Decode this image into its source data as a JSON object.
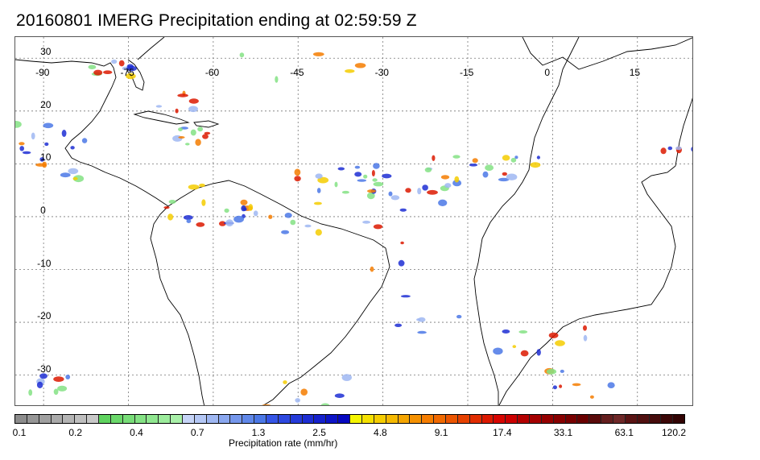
{
  "title": "20160801 IMERG Precipitation ending at 02:59:59 Z",
  "map": {
    "lon_labels": [
      "-90",
      "-75",
      "-60",
      "-45",
      "-30",
      "-15",
      "0",
      "15"
    ],
    "lat_labels": [
      "30",
      "20",
      "10",
      "0",
      "-10",
      "-20",
      "-30"
    ],
    "lon_range": [
      -95,
      25
    ],
    "lat_range": [
      -36,
      34
    ],
    "gridlines": true
  },
  "colorbar": {
    "label": "Precipitation rate (mm/hr)",
    "tick_labels": [
      "0.1",
      "0.2",
      "0.4",
      "0.7",
      "1.3",
      "2.5",
      "4.8",
      "9.1",
      "17.4",
      "33.1",
      "63.1",
      "120.2"
    ],
    "colors": [
      "#8c8c8c",
      "#969696",
      "#a0a0a0",
      "#aaaaaa",
      "#b4b4b4",
      "#bebebe",
      "#c8c8c8",
      "#5fd35f",
      "#6bd86b",
      "#78dd78",
      "#84e284",
      "#90e790",
      "#9cec9c",
      "#a9f0a9",
      "#c6d4f7",
      "#b4c7f5",
      "#9fb7f2",
      "#8aa7ef",
      "#7597ec",
      "#6088e9",
      "#4b78e6",
      "#3555e6",
      "#2d48e0",
      "#253bd9",
      "#1d2ed3",
      "#1521cc",
      "#0d14c6",
      "#0608c0",
      "#f5f500",
      "#f5e100",
      "#f5cd00",
      "#f5b900",
      "#f5a500",
      "#f59100",
      "#f57d00",
      "#f06900",
      "#eb5500",
      "#e64100",
      "#e12d00",
      "#dc1900",
      "#d70500",
      "#cc0000",
      "#b40000",
      "#a50000",
      "#960000",
      "#870000",
      "#780000",
      "#690000",
      "#5a0a0a",
      "#641e1e",
      "#6e2828",
      "#5a1414",
      "#501010",
      "#460c0c",
      "#3c0808",
      "#320404"
    ]
  }
}
